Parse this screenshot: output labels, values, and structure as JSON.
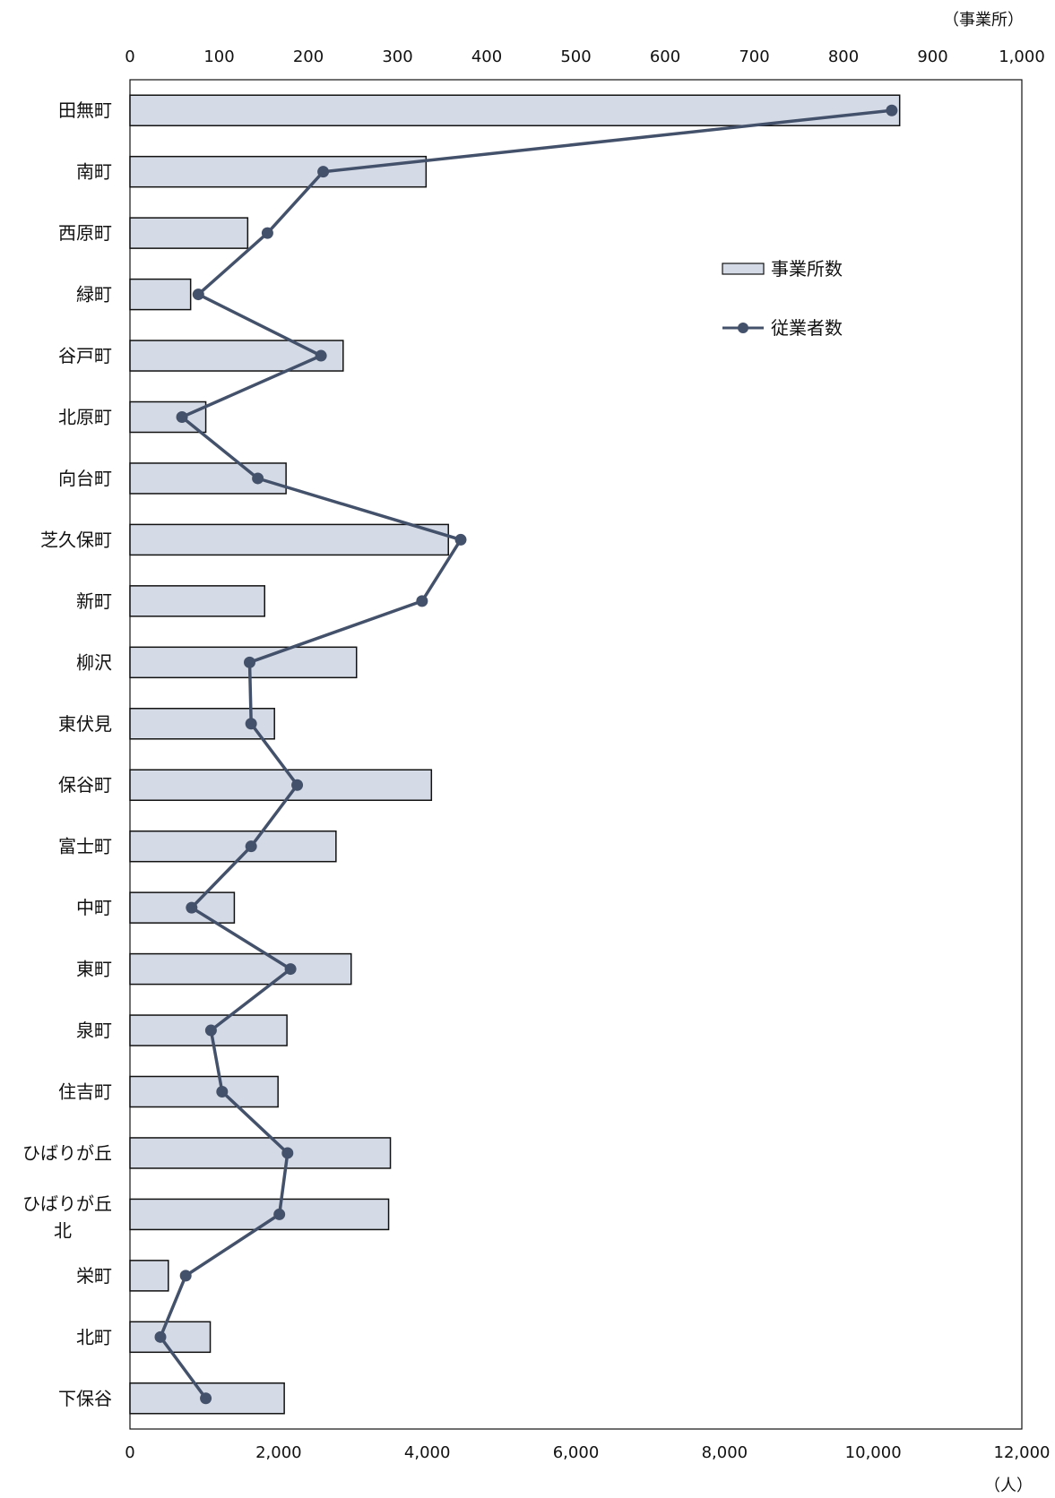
{
  "chart_data": {
    "type": "bar+line",
    "orientation": "horizontal",
    "top_axis": {
      "unit_label": "（事業所）",
      "range": [
        0,
        1000
      ],
      "ticks": [
        0,
        100,
        200,
        300,
        400,
        500,
        600,
        700,
        800,
        900,
        1000
      ],
      "tick_labels": [
        "0",
        "100",
        "200",
        "300",
        "400",
        "500",
        "600",
        "700",
        "800",
        "900",
        "1,000"
      ]
    },
    "bottom_axis": {
      "unit_label": "（人）",
      "range": [
        0,
        12000
      ],
      "ticks": [
        0,
        2000,
        4000,
        6000,
        8000,
        10000,
        12000
      ],
      "tick_labels": [
        "0",
        "2,000",
        "4,000",
        "6,000",
        "8,000",
        "10,000",
        "12,000"
      ]
    },
    "categories": [
      [
        "田無町"
      ],
      [
        "南町"
      ],
      [
        "西原町"
      ],
      [
        "緑町"
      ],
      [
        "谷戸町"
      ],
      [
        "北原町"
      ],
      [
        "向台町"
      ],
      [
        "芝久保町"
      ],
      [
        "新町"
      ],
      [
        "柳沢"
      ],
      [
        "東伏見"
      ],
      [
        "保谷町"
      ],
      [
        "富士町"
      ],
      [
        "中町"
      ],
      [
        "東町"
      ],
      [
        "泉町"
      ],
      [
        "住吉町"
      ],
      [
        "ひばりが丘"
      ],
      [
        "ひばりが丘",
        "北"
      ],
      [
        "栄町"
      ],
      [
        "北町"
      ],
      [
        "下保谷"
      ]
    ],
    "series": [
      {
        "name": "事業所数",
        "type": "bar",
        "axis": "top",
        "color": "#d5dbe6",
        "stroke": "#111111",
        "values": [
          863,
          332,
          132,
          68,
          239,
          85,
          175,
          357,
          151,
          254,
          162,
          338,
          231,
          117,
          248,
          176,
          166,
          292,
          290,
          43,
          90,
          173
        ]
      },
      {
        "name": "従業者数",
        "type": "line",
        "axis": "bottom",
        "color": "#44516a",
        "values": [
          10250,
          2600,
          1850,
          920,
          2570,
          700,
          1720,
          4450,
          3930,
          1610,
          1630,
          2250,
          1630,
          830,
          2160,
          1090,
          1240,
          2120,
          2010,
          750,
          410,
          1020
        ]
      }
    ],
    "legend": {
      "placement": "upper-right inside plot",
      "items": [
        {
          "label": "事業所数",
          "kind": "bar"
        },
        {
          "label": "従業者数",
          "kind": "line"
        }
      ]
    },
    "grid": false
  }
}
